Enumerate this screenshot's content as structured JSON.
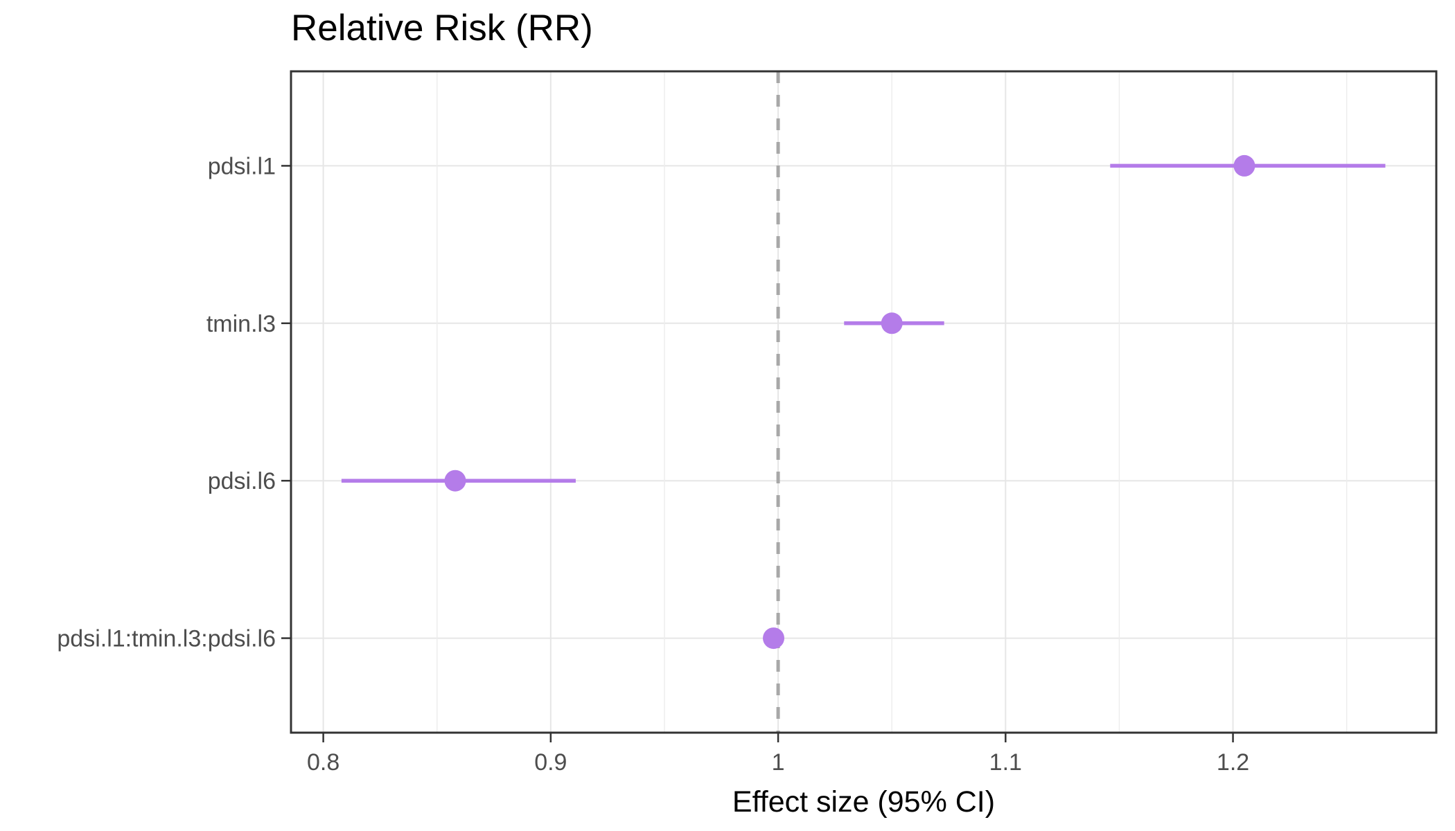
{
  "chart_data": {
    "type": "scatter",
    "subtype": "forest-pointrange-horizontal",
    "title": "Relative Risk (RR)",
    "xlabel": "Effect size (95% CI)",
    "ylabel": "",
    "categories": [
      "pdsi.l1",
      "tmin.l3",
      "pdsi.l6",
      "pdsi.l1:tmin.l3:pdsi.l6"
    ],
    "points": [
      {
        "label": "pdsi.l1",
        "estimate": 1.205,
        "ci_low": 1.146,
        "ci_high": 1.267
      },
      {
        "label": "tmin.l3",
        "estimate": 1.05,
        "ci_low": 1.029,
        "ci_high": 1.073
      },
      {
        "label": "pdsi.l6",
        "estimate": 0.858,
        "ci_low": 0.808,
        "ci_high": 0.911
      },
      {
        "label": "pdsi.l1:tmin.l3:pdsi.l6",
        "estimate": 0.998,
        "ci_low": 0.995,
        "ci_high": 1.002
      }
    ],
    "x_major_ticks": [
      {
        "value": 0.8,
        "label": "0.8"
      },
      {
        "value": 0.9,
        "label": "0.9"
      },
      {
        "value": 1.0,
        "label": "1"
      },
      {
        "value": 1.1,
        "label": "1.1"
      },
      {
        "value": 1.2,
        "label": "1.2"
      }
    ],
    "x_minor_ticks": [
      0.85,
      0.95,
      1.05,
      1.15,
      1.25
    ],
    "xlim": [
      0.7858,
      1.2894
    ],
    "reference_line_x": 1.0,
    "grid": true,
    "legend": false,
    "style": {
      "point_color": "#b47ce9",
      "interval_color": "#b47ce9",
      "reference_line_color": "#a8a8a8",
      "major_grid_color": "#e6e6e6",
      "minor_grid_color": "#ededed",
      "panel_border_color": "#333333",
      "tick_color": "#333333",
      "axis_text_color": "#4d4d4d",
      "title_color": "#000000",
      "axis_title_color": "#000000",
      "background_color": "#ffffff"
    }
  }
}
